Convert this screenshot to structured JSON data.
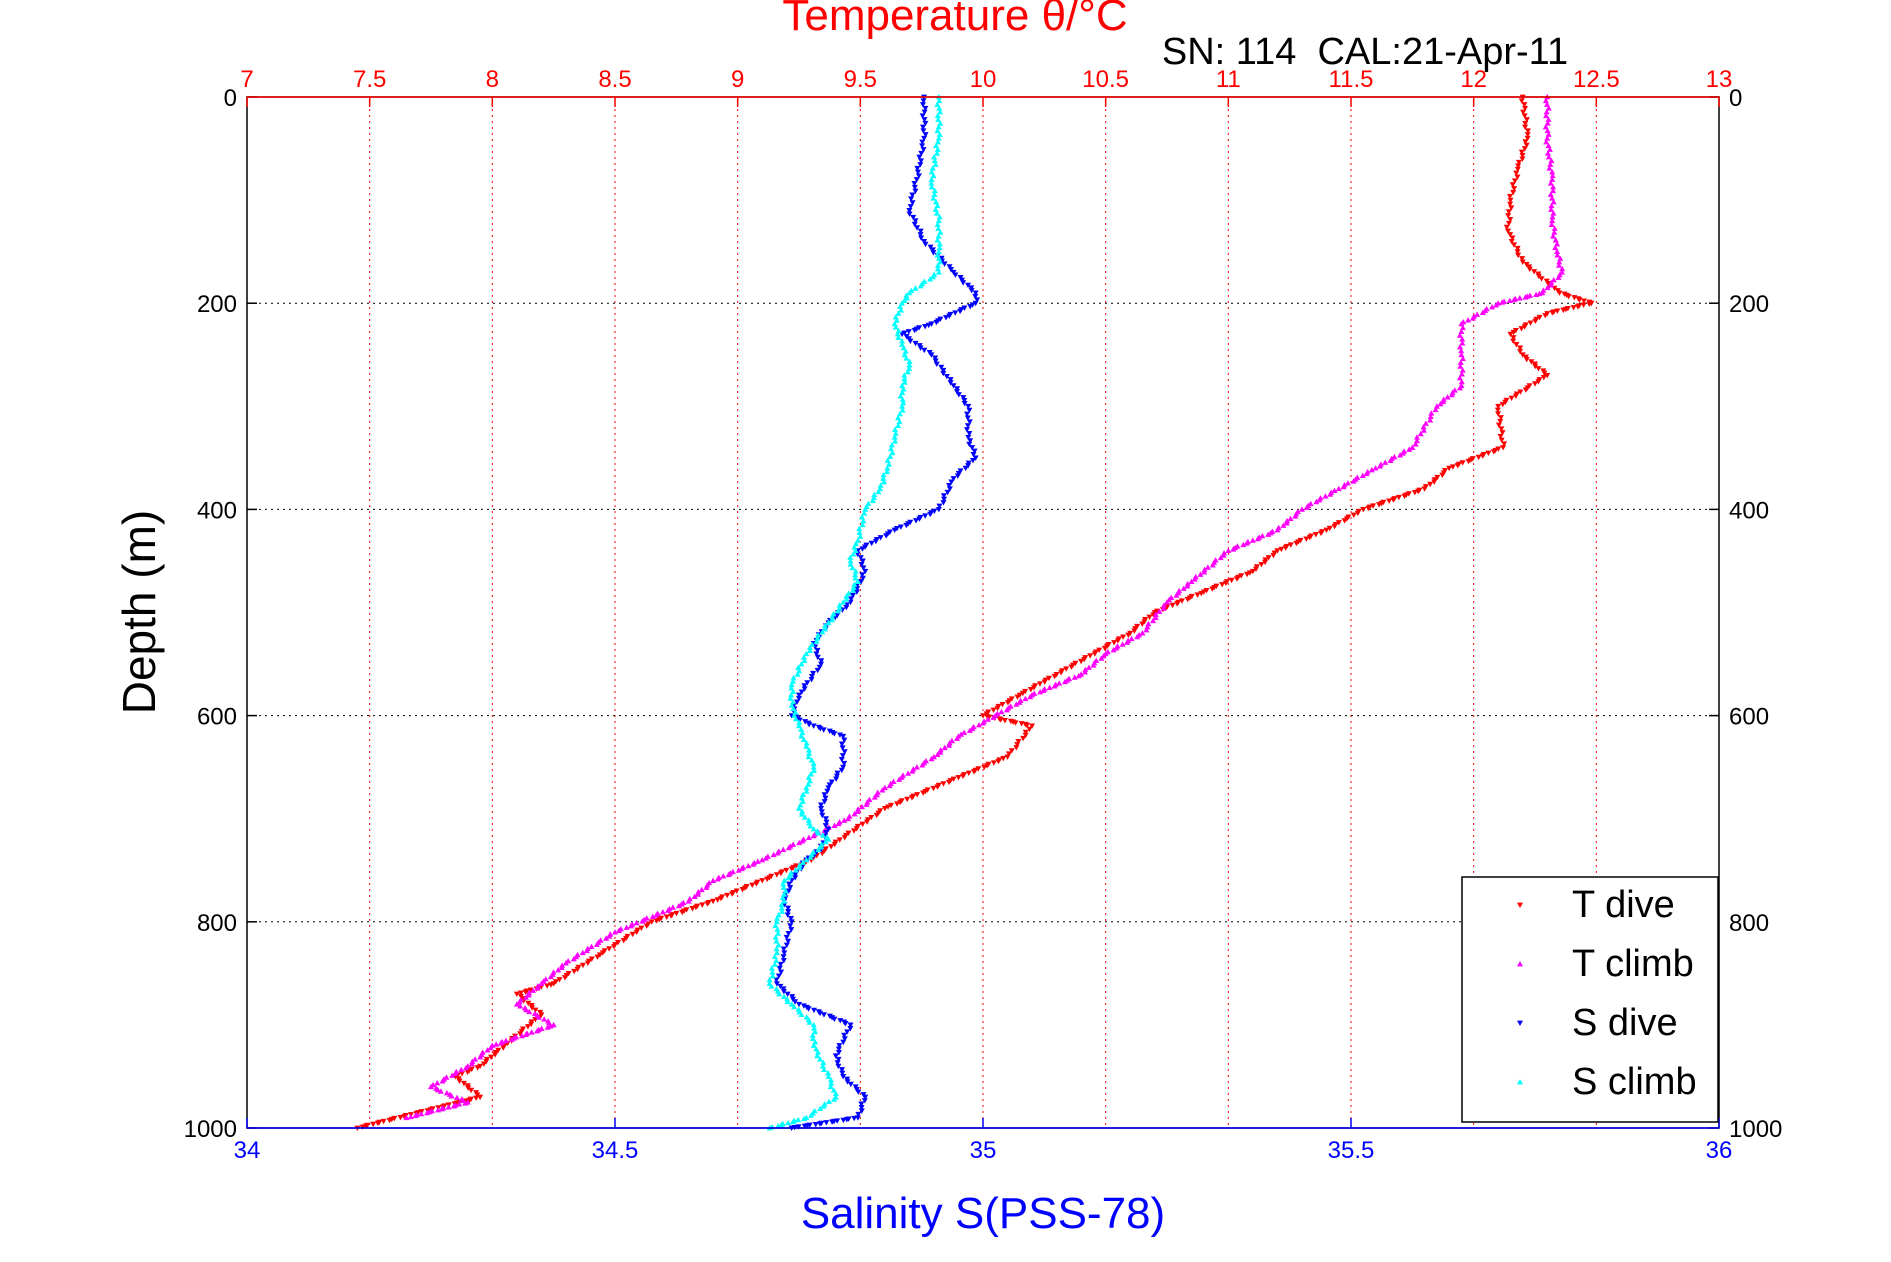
{
  "chart_data": {
    "type": "scatter",
    "title": "SN: 114  CAL:21-Apr-11",
    "top_axis_label": "Temperature θ/°C",
    "bottom_axis_label": "Salinity S(PSS-78)",
    "ylabel": "Depth (m)",
    "temperature_axis": {
      "range": [
        7,
        13
      ],
      "ticks": [
        "7",
        "7.5",
        "8",
        "8.5",
        "9",
        "9.5",
        "10",
        "10.5",
        "11",
        "11.5",
        "12",
        "12.5",
        "13"
      ],
      "color": "#ff0000"
    },
    "salinity_axis": {
      "range": [
        34,
        36
      ],
      "ticks": [
        "34",
        "34.5",
        "35",
        "35.5",
        "36"
      ],
      "color": "#0000ff"
    },
    "depth_axis": {
      "range": [
        0,
        1000
      ],
      "reversed": true,
      "ticks": [
        "0",
        "200",
        "400",
        "600",
        "800",
        "1000"
      ]
    },
    "grid": true,
    "legend_position": "bottom-right",
    "series": [
      {
        "name": "T dive",
        "axis": "temperature",
        "color": "#ff0000",
        "points": [
          [
            12.2,
            0
          ],
          [
            12.22,
            40
          ],
          [
            12.18,
            70
          ],
          [
            12.15,
            100
          ],
          [
            12.14,
            130
          ],
          [
            12.2,
            160
          ],
          [
            12.35,
            190
          ],
          [
            12.48,
            200
          ],
          [
            12.3,
            210
          ],
          [
            12.15,
            230
          ],
          [
            12.2,
            250
          ],
          [
            12.3,
            270
          ],
          [
            12.1,
            300
          ],
          [
            12.12,
            340
          ],
          [
            11.9,
            360
          ],
          [
            11.8,
            380
          ],
          [
            11.55,
            400
          ],
          [
            11.4,
            420
          ],
          [
            11.2,
            440
          ],
          [
            11.1,
            460
          ],
          [
            10.9,
            480
          ],
          [
            10.7,
            500
          ],
          [
            10.6,
            520
          ],
          [
            10.3,
            560
          ],
          [
            10.15,
            580
          ],
          [
            10.0,
            600
          ],
          [
            10.2,
            610
          ],
          [
            10.1,
            640
          ],
          [
            9.9,
            660
          ],
          [
            9.6,
            690
          ],
          [
            9.3,
            740
          ],
          [
            9.1,
            760
          ],
          [
            8.9,
            780
          ],
          [
            8.65,
            800
          ],
          [
            8.45,
            830
          ],
          [
            8.25,
            860
          ],
          [
            8.1,
            870
          ],
          [
            8.2,
            890
          ],
          [
            8.05,
            920
          ],
          [
            7.95,
            940
          ],
          [
            7.85,
            950
          ],
          [
            7.95,
            970
          ],
          [
            7.45,
            1000
          ]
        ]
      },
      {
        "name": "T climb",
        "axis": "temperature",
        "color": "#ff00ff",
        "points": [
          [
            12.3,
            0
          ],
          [
            12.3,
            40
          ],
          [
            12.32,
            80
          ],
          [
            12.32,
            120
          ],
          [
            12.34,
            150
          ],
          [
            12.36,
            170
          ],
          [
            12.28,
            190
          ],
          [
            12.1,
            200
          ],
          [
            11.95,
            220
          ],
          [
            11.95,
            250
          ],
          [
            11.95,
            280
          ],
          [
            11.85,
            300
          ],
          [
            11.75,
            340
          ],
          [
            11.6,
            360
          ],
          [
            11.45,
            380
          ],
          [
            11.3,
            400
          ],
          [
            11.2,
            420
          ],
          [
            11.0,
            440
          ],
          [
            10.85,
            470
          ],
          [
            10.75,
            490
          ],
          [
            10.65,
            520
          ],
          [
            10.5,
            540
          ],
          [
            10.4,
            560
          ],
          [
            10.2,
            580
          ],
          [
            10.05,
            600
          ],
          [
            9.9,
            620
          ],
          [
            9.8,
            640
          ],
          [
            9.6,
            670
          ],
          [
            9.45,
            700
          ],
          [
            9.1,
            740
          ],
          [
            8.9,
            760
          ],
          [
            8.8,
            780
          ],
          [
            8.5,
            810
          ],
          [
            8.3,
            840
          ],
          [
            8.2,
            860
          ],
          [
            8.1,
            880
          ],
          [
            8.25,
            900
          ],
          [
            8.0,
            920
          ],
          [
            7.9,
            940
          ],
          [
            7.75,
            960
          ],
          [
            7.9,
            975
          ],
          [
            7.65,
            990
          ]
        ]
      },
      {
        "name": "S dive",
        "axis": "salinity",
        "color": "#0000ff",
        "points": [
          [
            34.92,
            0
          ],
          [
            34.92,
            40
          ],
          [
            34.91,
            80
          ],
          [
            34.9,
            110
          ],
          [
            34.92,
            140
          ],
          [
            34.96,
            170
          ],
          [
            34.99,
            190
          ],
          [
            34.99,
            200
          ],
          [
            34.93,
            220
          ],
          [
            34.89,
            230
          ],
          [
            34.93,
            250
          ],
          [
            34.96,
            280
          ],
          [
            34.98,
            300
          ],
          [
            34.98,
            330
          ],
          [
            34.99,
            350
          ],
          [
            34.96,
            370
          ],
          [
            34.94,
            400
          ],
          [
            34.88,
            420
          ],
          [
            34.83,
            440
          ],
          [
            34.84,
            460
          ],
          [
            34.82,
            490
          ],
          [
            34.79,
            510
          ],
          [
            34.77,
            530
          ],
          [
            34.78,
            550
          ],
          [
            34.75,
            580
          ],
          [
            34.74,
            600
          ],
          [
            34.77,
            610
          ],
          [
            34.81,
            620
          ],
          [
            34.81,
            650
          ],
          [
            34.79,
            670
          ],
          [
            34.78,
            690
          ],
          [
            34.79,
            710
          ],
          [
            34.78,
            730
          ],
          [
            34.76,
            740
          ],
          [
            34.74,
            760
          ],
          [
            34.73,
            780
          ],
          [
            34.74,
            800
          ],
          [
            34.73,
            830
          ],
          [
            34.72,
            860
          ],
          [
            34.75,
            880
          ],
          [
            34.82,
            900
          ],
          [
            34.8,
            930
          ],
          [
            34.81,
            950
          ],
          [
            34.84,
            970
          ],
          [
            34.83,
            990
          ],
          [
            34.74,
            1000
          ]
        ]
      },
      {
        "name": "S climb",
        "axis": "salinity",
        "color": "#00ffff",
        "points": [
          [
            34.94,
            0
          ],
          [
            34.94,
            40
          ],
          [
            34.93,
            80
          ],
          [
            34.94,
            120
          ],
          [
            34.94,
            150
          ],
          [
            34.94,
            170
          ],
          [
            34.9,
            190
          ],
          [
            34.89,
            200
          ],
          [
            34.88,
            220
          ],
          [
            34.89,
            240
          ],
          [
            34.9,
            260
          ],
          [
            34.89,
            280
          ],
          [
            34.89,
            300
          ],
          [
            34.88,
            330
          ],
          [
            34.87,
            360
          ],
          [
            34.86,
            380
          ],
          [
            34.84,
            400
          ],
          [
            34.83,
            430
          ],
          [
            34.82,
            450
          ],
          [
            34.83,
            470
          ],
          [
            34.81,
            490
          ],
          [
            34.79,
            510
          ],
          [
            34.76,
            540
          ],
          [
            34.74,
            570
          ],
          [
            34.74,
            590
          ],
          [
            34.75,
            610
          ],
          [
            34.76,
            630
          ],
          [
            34.77,
            650
          ],
          [
            34.76,
            670
          ],
          [
            34.75,
            690
          ],
          [
            34.77,
            710
          ],
          [
            34.79,
            720
          ],
          [
            34.76,
            740
          ],
          [
            34.73,
            760
          ],
          [
            34.73,
            780
          ],
          [
            34.72,
            800
          ],
          [
            34.72,
            830
          ],
          [
            34.71,
            860
          ],
          [
            34.74,
            880
          ],
          [
            34.77,
            900
          ],
          [
            34.77,
            920
          ],
          [
            34.79,
            950
          ],
          [
            34.8,
            970
          ],
          [
            34.76,
            990
          ],
          [
            34.71,
            1000
          ]
        ]
      }
    ]
  }
}
